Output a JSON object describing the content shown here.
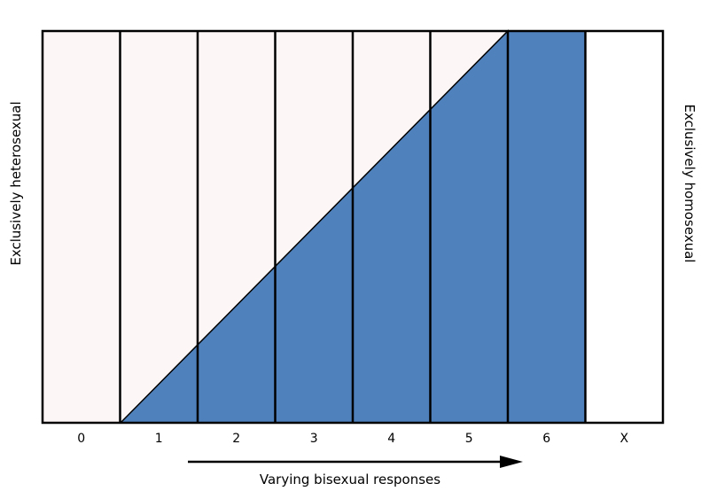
{
  "columns": [
    "0",
    "1",
    "2",
    "3",
    "4",
    "5",
    "6",
    "X"
  ],
  "left_label": "Exclusively heterosexual",
  "right_label": "Exclusively homosexual",
  "bottom_label": "Varying bisexual responses",
  "colors": {
    "heterosexual_fill": "#fdf6f6",
    "homosexual_fill": "#4f81bd",
    "none_fill": "#ffffff",
    "stroke": "#000000"
  }
}
